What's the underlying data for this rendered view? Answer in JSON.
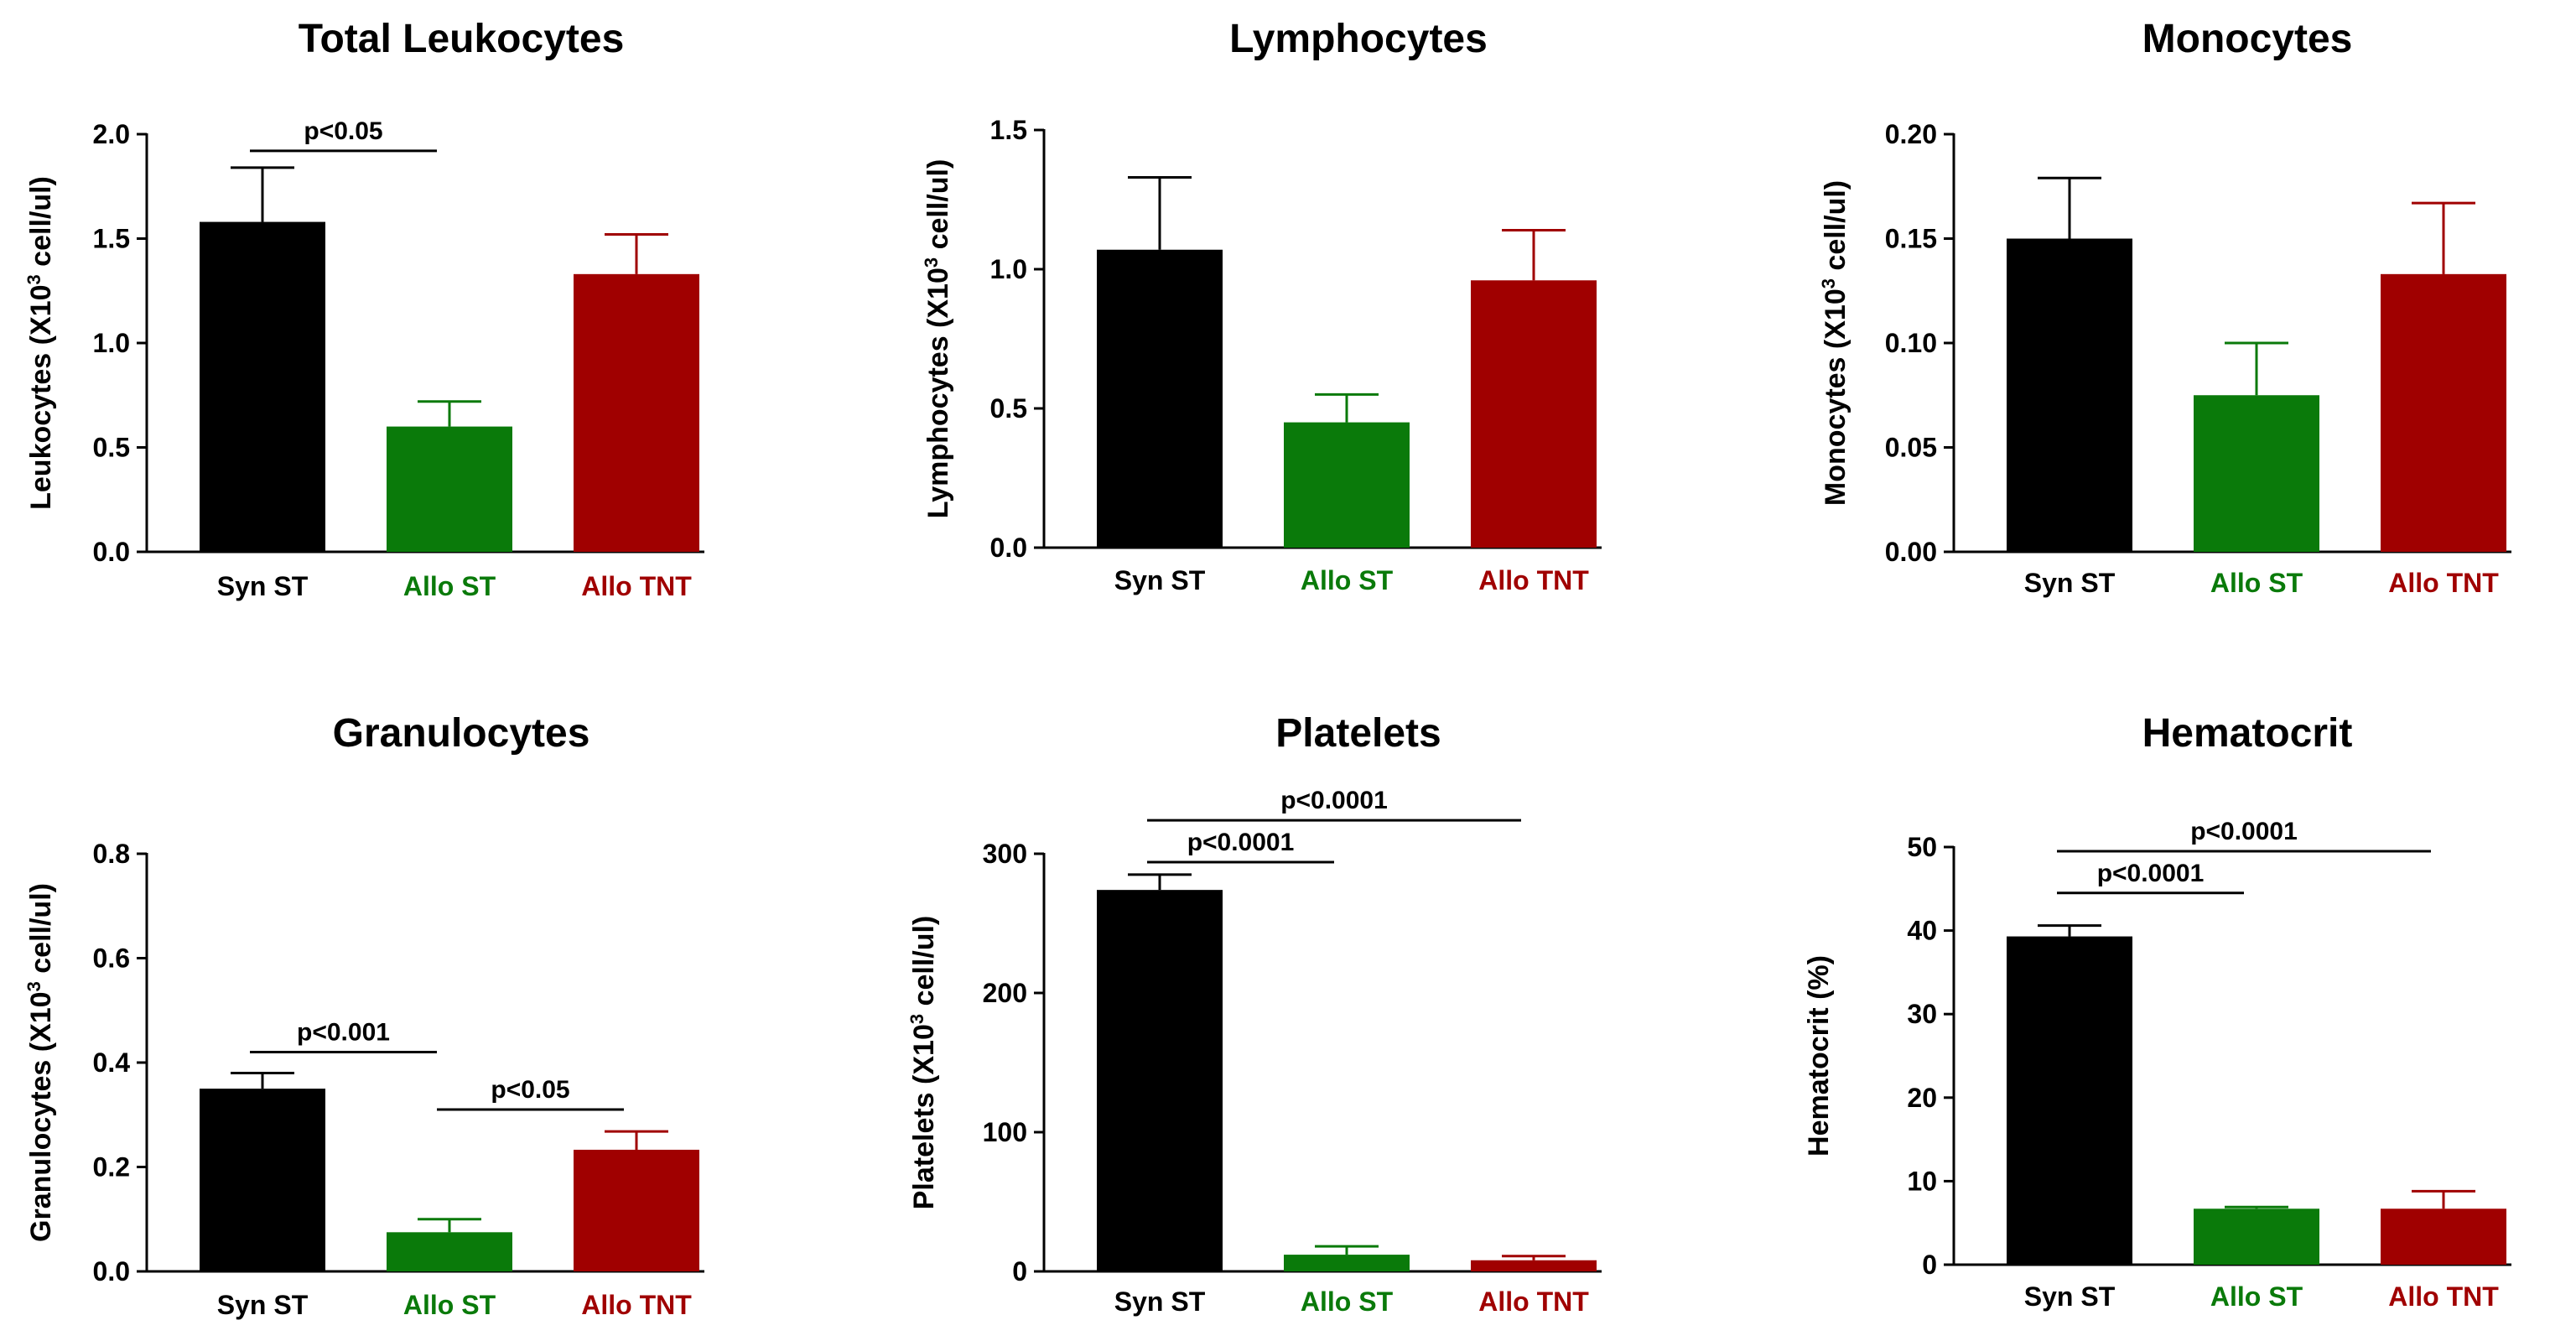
{
  "colors": {
    "syn_st": "#000000",
    "allo_st": "#0a7a0a",
    "allo_tnt": "#a00000",
    "axis": "#000000"
  },
  "chart_data": [
    {
      "type": "bar",
      "title": "Total Leukocytes",
      "ylabel_prefix": "Leukocytes (X10",
      "ylabel_sup": "3",
      "ylabel_suffix": " cell/ul)",
      "categories": [
        "Syn ST",
        "Allo ST",
        "Allo TNT"
      ],
      "values": [
        1.58,
        0.6,
        1.33
      ],
      "errors": [
        0.26,
        0.12,
        0.19
      ],
      "ylim": [
        0,
        2.0
      ],
      "yticks": [
        "0.0",
        "0.5",
        "1.0",
        "1.5",
        "2.0"
      ],
      "significance": [
        {
          "from": 0,
          "to": 1,
          "label": "p<0.05",
          "y": 1.92
        }
      ]
    },
    {
      "type": "bar",
      "title": "Lymphocytes",
      "ylabel_prefix": "Lymphocytes (X10",
      "ylabel_sup": "3",
      "ylabel_suffix": " cell/ul)",
      "categories": [
        "Syn ST",
        "Allo ST",
        "Allo TNT"
      ],
      "values": [
        1.07,
        0.45,
        0.96
      ],
      "errors": [
        0.26,
        0.1,
        0.18
      ],
      "ylim": [
        0,
        1.5
      ],
      "yticks": [
        "0.0",
        "0.5",
        "1.0",
        "1.5"
      ],
      "significance": []
    },
    {
      "type": "bar",
      "title": "Monocytes",
      "ylabel_prefix": "Monocytes (X10",
      "ylabel_sup": "3",
      "ylabel_suffix": " cell/ul)",
      "categories": [
        "Syn ST",
        "Allo ST",
        "Allo TNT"
      ],
      "values": [
        0.15,
        0.075,
        0.133
      ],
      "errors": [
        0.029,
        0.025,
        0.034
      ],
      "ylim": [
        0,
        0.2
      ],
      "yticks": [
        "0.00",
        "0.05",
        "0.10",
        "0.15",
        "0.20"
      ],
      "significance": []
    },
    {
      "type": "bar",
      "title": "Granulocytes",
      "ylabel_prefix": "Granulocytes (X10",
      "ylabel_sup": "3",
      "ylabel_suffix": " cell/ul)",
      "categories": [
        "Syn ST",
        "Allo ST",
        "Allo TNT"
      ],
      "values": [
        0.35,
        0.075,
        0.233
      ],
      "errors": [
        0.03,
        0.025,
        0.035
      ],
      "ylim": [
        0,
        0.8
      ],
      "yticks": [
        "0.0",
        "0.2",
        "0.4",
        "0.6",
        "0.8"
      ],
      "significance": [
        {
          "from": 0,
          "to": 1,
          "label": "p<0.001",
          "y": 0.42
        },
        {
          "from": 1,
          "to": 2,
          "label": "p<0.05",
          "y": 0.31
        }
      ]
    },
    {
      "type": "bar",
      "title": "Platelets",
      "ylabel_prefix": "Platelets (X10",
      "ylabel_sup": "3",
      "ylabel_suffix": " cell/ul)",
      "categories": [
        "Syn ST",
        "Allo ST",
        "Allo TNT"
      ],
      "values": [
        274,
        12,
        8
      ],
      "errors": [
        11,
        6,
        3
      ],
      "ylim": [
        0,
        300
      ],
      "yticks": [
        "0",
        "100",
        "200",
        "300"
      ],
      "significance": [
        {
          "from": 0,
          "to": 1,
          "label": "p<0.0001",
          "y": 294
        },
        {
          "from": 0,
          "to": 2,
          "label": "p<0.0001",
          "y": 324
        }
      ]
    },
    {
      "type": "bar",
      "title": "Hematocrit",
      "ylabel_prefix": "Hematocrit (%)",
      "ylabel_sup": "",
      "ylabel_suffix": "",
      "categories": [
        "Syn ST",
        "Allo ST",
        "Allo TNT"
      ],
      "values": [
        39.3,
        6.7,
        6.7
      ],
      "errors": [
        1.3,
        0.2,
        2.1
      ],
      "ylim": [
        0,
        50
      ],
      "yticks": [
        "0",
        "10",
        "20",
        "30",
        "40",
        "50"
      ],
      "significance": [
        {
          "from": 0,
          "to": 1,
          "label": "p<0.0001",
          "y": 44.5
        },
        {
          "from": 0,
          "to": 2,
          "label": "p<0.0001",
          "y": 49.5
        }
      ]
    }
  ]
}
